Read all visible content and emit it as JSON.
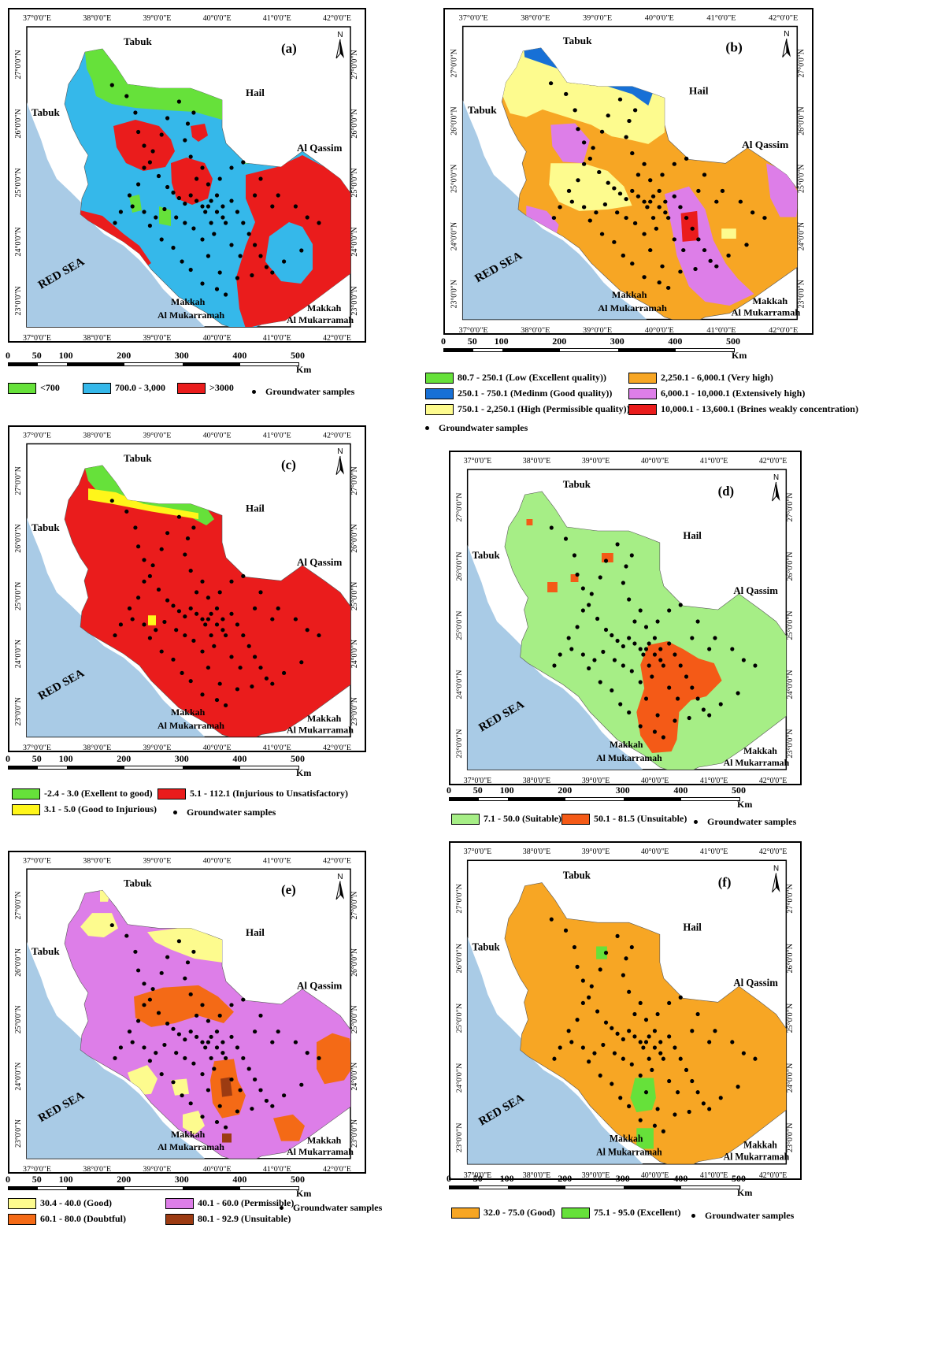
{
  "ticks": {
    "lon": [
      "37°0'0\"E",
      "38°0'0\"E",
      "39°0'0\"E",
      "40°0'0\"E",
      "41°0'0\"E",
      "42°0'0\"E"
    ],
    "lat": [
      "27°0'0\"N",
      "26°0'0\"N",
      "25°0'0\"N",
      "24°0'0\"N",
      "23°0'0\"N"
    ]
  },
  "places": {
    "tabuk": "Tabuk",
    "hail": "Hail",
    "qassim": "Al Qassim",
    "makkah_a": "Makkah",
    "makkah_b": "Al Mukarramah",
    "red_sea": "RED   SEA"
  },
  "north": "N",
  "scale": {
    "labels": [
      "0",
      "50",
      "100",
      "200",
      "300",
      "400",
      "500"
    ],
    "unit": "Km"
  },
  "samples_label": "Groundwater samples",
  "colors": {
    "sea": "#a9cbe6",
    "green": "#66e13a",
    "cyan": "#35b8ea",
    "red": "#ea1c1c",
    "orange": "#f7a624",
    "blue": "#1770d6",
    "yellow": "#fdfb8e",
    "violet": "#dd7ee8",
    "lightgreen": "#a6ee86",
    "redorange": "#f45a17",
    "darkorange": "#f46a16",
    "brown": "#9c3b12",
    "pureyellow": "#fff61a"
  },
  "panels": [
    {
      "id": "a",
      "label": "(a)",
      "legend": [
        {
          "text": "<700",
          "color": "#66e13a"
        },
        {
          "text": "700.0 - 3,000",
          "color": "#35b8ea"
        },
        {
          "text": ">3000",
          "color": "#ea1c1c"
        }
      ]
    },
    {
      "id": "b",
      "label": "(b)",
      "legend": [
        {
          "text": "80.7 - 250.1 (Low (Excellent quality))",
          "color": "#66e13a"
        },
        {
          "text": "250.1 - 750.1 (Medinm (Good quality))",
          "color": "#1770d6"
        },
        {
          "text": "750.1 - 2,250.1 (High (Permissible quality))",
          "color": "#fdfb8e"
        },
        {
          "text": "2,250.1 - 6,000.1 (Very high)",
          "color": "#f7a624"
        },
        {
          "text": "6,000.1 - 10,000.1 (Extensively high)",
          "color": "#dd7ee8"
        },
        {
          "text": "10,000.1 - 13,600.1 (Brines weakly concentration)",
          "color": "#ea1c1c"
        }
      ]
    },
    {
      "id": "c",
      "label": "(c)",
      "legend": [
        {
          "text": "-2.4 - 3.0 (Exellent to good)",
          "color": "#66e13a"
        },
        {
          "text": "5.1 - 112.1 (Injurious to Unsatisfactory)",
          "color": "#ea1c1c"
        },
        {
          "text": "3.1 - 5.0 (Good to Injurious)",
          "color": "#fff61a"
        }
      ]
    },
    {
      "id": "d",
      "label": "(d)",
      "legend": [
        {
          "text": "7.1 - 50.0 (Suitable)",
          "color": "#a6ee86"
        },
        {
          "text": "50.1 - 81.5 (Unsuitable)",
          "color": "#f45a17"
        }
      ]
    },
    {
      "id": "e",
      "label": "(e)",
      "legend": [
        {
          "text": "30.4 - 40.0 (Good)",
          "color": "#fdfb8e"
        },
        {
          "text": "60.1 - 80.0 (Doubtful)",
          "color": "#f46a16"
        },
        {
          "text": "40.1 - 60.0 (Permissible)",
          "color": "#dd7ee8"
        },
        {
          "text": "80.1 - 92.9 (Unsuitable)",
          "color": "#9c3b12"
        }
      ]
    },
    {
      "id": "f",
      "label": "(f)",
      "legend": [
        {
          "text": "32.0 - 75.0 (Good)",
          "color": "#f7a624"
        },
        {
          "text": "75.1 - 95.0 (Excellent)",
          "color": "#66e13a"
        }
      ]
    }
  ]
}
